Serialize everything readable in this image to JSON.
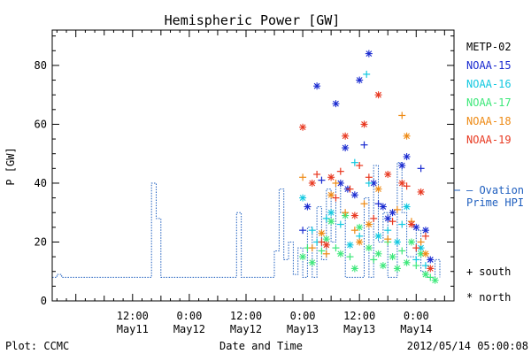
{
  "chart_data": {
    "type": "scatter",
    "title": "Hemispheric Power [GW]",
    "xlabel": "Date and Time",
    "ylabel": "P [GW]",
    "xlim": [
      "2012-05-10T19:00",
      "2012-05-14T08:00"
    ],
    "ylim": [
      0,
      92
    ],
    "yticks": [
      0,
      20,
      40,
      60,
      80
    ],
    "xticks": [
      {
        "t": "2012-05-11T12:00",
        "line1": "12:00",
        "line2": "May11"
      },
      {
        "t": "2012-05-12T00:00",
        "line1": "0:00",
        "line2": "May12"
      },
      {
        "t": "2012-05-12T12:00",
        "line1": "12:00",
        "line2": "May12"
      },
      {
        "t": "2012-05-13T00:00",
        "line1": "0:00",
        "line2": "May13"
      },
      {
        "t": "2012-05-13T12:00",
        "line1": "12:00",
        "line2": "May13"
      },
      {
        "t": "2012-05-14T00:00",
        "line1": "0:00",
        "line2": "May14"
      }
    ],
    "ovation": {
      "label_line1": "— Ovation",
      "label_line2": "Prime HPI",
      "color": "#1f5fbf",
      "points": [
        [
          "2012-05-10T19:00",
          8
        ],
        [
          "2012-05-10T20:00",
          8
        ],
        [
          "2012-05-10T20:00",
          9
        ],
        [
          "2012-05-10T21:00",
          9
        ],
        [
          "2012-05-10T21:00",
          8
        ],
        [
          "2012-05-11T16:00",
          8
        ],
        [
          "2012-05-11T16:00",
          40
        ],
        [
          "2012-05-11T17:00",
          40
        ],
        [
          "2012-05-11T17:00",
          28
        ],
        [
          "2012-05-11T18:00",
          28
        ],
        [
          "2012-05-11T18:00",
          8
        ],
        [
          "2012-05-12T10:00",
          8
        ],
        [
          "2012-05-12T10:00",
          30
        ],
        [
          "2012-05-12T11:00",
          30
        ],
        [
          "2012-05-12T11:00",
          8
        ],
        [
          "2012-05-12T18:00",
          8
        ],
        [
          "2012-05-12T18:00",
          17
        ],
        [
          "2012-05-12T19:00",
          17
        ],
        [
          "2012-05-12T19:00",
          38
        ],
        [
          "2012-05-12T20:00",
          38
        ],
        [
          "2012-05-12T20:00",
          14
        ],
        [
          "2012-05-12T21:00",
          14
        ],
        [
          "2012-05-12T21:00",
          20
        ],
        [
          "2012-05-12T22:00",
          20
        ],
        [
          "2012-05-12T22:00",
          9
        ],
        [
          "2012-05-12T23:00",
          9
        ],
        [
          "2012-05-12T23:00",
          18
        ],
        [
          "2012-05-13T00:00",
          18
        ],
        [
          "2012-05-13T00:00",
          8
        ],
        [
          "2012-05-13T01:00",
          8
        ],
        [
          "2012-05-13T01:00",
          25
        ],
        [
          "2012-05-13T02:00",
          25
        ],
        [
          "2012-05-13T02:00",
          8
        ],
        [
          "2012-05-13T03:00",
          8
        ],
        [
          "2012-05-13T03:00",
          32
        ],
        [
          "2012-05-13T04:00",
          32
        ],
        [
          "2012-05-13T04:00",
          14
        ],
        [
          "2012-05-13T05:00",
          14
        ],
        [
          "2012-05-13T05:00",
          38
        ],
        [
          "2012-05-13T06:00",
          38
        ],
        [
          "2012-05-13T06:00",
          20
        ],
        [
          "2012-05-13T07:00",
          20
        ],
        [
          "2012-05-13T07:00",
          40
        ],
        [
          "2012-05-13T08:00",
          40
        ],
        [
          "2012-05-13T08:00",
          30
        ],
        [
          "2012-05-13T09:00",
          30
        ],
        [
          "2012-05-13T09:00",
          8
        ],
        [
          "2012-05-13T13:00",
          8
        ],
        [
          "2012-05-13T13:00",
          35
        ],
        [
          "2012-05-13T14:00",
          35
        ],
        [
          "2012-05-13T14:00",
          8
        ],
        [
          "2012-05-13T15:00",
          8
        ],
        [
          "2012-05-13T15:00",
          46
        ],
        [
          "2012-05-13T16:00",
          46
        ],
        [
          "2012-05-13T16:00",
          20
        ],
        [
          "2012-05-13T17:00",
          20
        ],
        [
          "2012-05-13T17:00",
          30
        ],
        [
          "2012-05-13T18:00",
          30
        ],
        [
          "2012-05-13T18:00",
          8
        ],
        [
          "2012-05-13T20:00",
          8
        ],
        [
          "2012-05-13T20:00",
          47
        ],
        [
          "2012-05-13T21:00",
          47
        ],
        [
          "2012-05-13T21:00",
          30
        ],
        [
          "2012-05-13T22:00",
          30
        ],
        [
          "2012-05-13T22:00",
          15
        ],
        [
          "2012-05-14T00:00",
          15
        ],
        [
          "2012-05-14T00:00",
          24
        ],
        [
          "2012-05-14T01:00",
          24
        ],
        [
          "2012-05-14T01:00",
          10
        ],
        [
          "2012-05-14T02:00",
          10
        ],
        [
          "2012-05-14T02:00",
          8
        ],
        [
          "2012-05-14T04:00",
          8
        ],
        [
          "2012-05-14T04:00",
          14
        ],
        [
          "2012-05-14T05:00",
          14
        ],
        [
          "2012-05-14T05:00",
          8
        ]
      ]
    },
    "series": [
      {
        "name": "METP-02",
        "color": "#000000",
        "points": []
      },
      {
        "name": "NOAA-15",
        "color": "#1a2bd0",
        "points": [
          [
            "2012-05-13T00:00",
            24,
            "+"
          ],
          [
            "2012-05-13T01:00",
            32,
            "*"
          ],
          [
            "2012-05-13T03:00",
            73,
            "*"
          ],
          [
            "2012-05-13T04:00",
            41,
            "+"
          ],
          [
            "2012-05-13T07:00",
            67,
            "*"
          ],
          [
            "2012-05-13T08:00",
            40,
            "*"
          ],
          [
            "2012-05-13T09:00",
            52,
            "*"
          ],
          [
            "2012-05-13T09:30",
            38,
            "*"
          ],
          [
            "2012-05-13T11:00",
            36,
            "*"
          ],
          [
            "2012-05-13T12:00",
            75,
            "*"
          ],
          [
            "2012-05-13T13:00",
            53,
            "+"
          ],
          [
            "2012-05-13T14:00",
            84,
            "*"
          ],
          [
            "2012-05-13T15:00",
            40,
            "*"
          ],
          [
            "2012-05-13T16:00",
            33,
            "+"
          ],
          [
            "2012-05-13T17:00",
            32,
            "*"
          ],
          [
            "2012-05-13T18:00",
            28,
            "*"
          ],
          [
            "2012-05-13T19:00",
            30,
            "*"
          ],
          [
            "2012-05-13T21:00",
            46,
            "*"
          ],
          [
            "2012-05-13T22:00",
            49,
            "*"
          ],
          [
            "2012-05-14T00:00",
            25,
            "*"
          ],
          [
            "2012-05-14T01:00",
            45,
            "+"
          ],
          [
            "2012-05-14T02:00",
            24,
            "*"
          ],
          [
            "2012-05-14T03:00",
            14,
            "*"
          ]
        ]
      },
      {
        "name": "NOAA-16",
        "color": "#12c8e0",
        "points": [
          [
            "2012-05-13T00:00",
            35,
            "*"
          ],
          [
            "2012-05-13T02:00",
            24,
            "+"
          ],
          [
            "2012-05-13T03:00",
            20,
            "+"
          ],
          [
            "2012-05-13T05:00",
            28,
            "+"
          ],
          [
            "2012-05-13T06:00",
            30,
            "*"
          ],
          [
            "2012-05-13T08:00",
            26,
            "+"
          ],
          [
            "2012-05-13T10:00",
            19,
            "*"
          ],
          [
            "2012-05-13T11:00",
            47,
            "+"
          ],
          [
            "2012-05-13T12:00",
            22,
            "+"
          ],
          [
            "2012-05-13T13:30",
            77,
            "+"
          ],
          [
            "2012-05-13T14:00",
            40,
            "+"
          ],
          [
            "2012-05-13T16:00",
            22,
            "*"
          ],
          [
            "2012-05-13T18:00",
            24,
            "+"
          ],
          [
            "2012-05-13T20:00",
            20,
            "*"
          ],
          [
            "2012-05-13T21:00",
            26,
            "+"
          ],
          [
            "2012-05-13T22:00",
            32,
            "*"
          ],
          [
            "2012-05-14T00:00",
            14,
            "+"
          ],
          [
            "2012-05-14T01:00",
            18,
            "*"
          ],
          [
            "2012-05-14T02:00",
            12,
            "+"
          ]
        ]
      },
      {
        "name": "NOAA-17",
        "color": "#3de87a",
        "points": [
          [
            "2012-05-13T00:00",
            15,
            "*"
          ],
          [
            "2012-05-13T01:00",
            18,
            "+"
          ],
          [
            "2012-05-13T02:00",
            13,
            "*"
          ],
          [
            "2012-05-13T04:00",
            17,
            "+"
          ],
          [
            "2012-05-13T05:00",
            21,
            "*"
          ],
          [
            "2012-05-13T06:00",
            27,
            "*"
          ],
          [
            "2012-05-13T07:00",
            18,
            "+"
          ],
          [
            "2012-05-13T08:00",
            16,
            "*"
          ],
          [
            "2012-05-13T09:00",
            29,
            "*"
          ],
          [
            "2012-05-13T10:00",
            15,
            "+"
          ],
          [
            "2012-05-13T11:00",
            11,
            "*"
          ],
          [
            "2012-05-13T12:00",
            25,
            "*"
          ],
          [
            "2012-05-13T14:00",
            18,
            "*"
          ],
          [
            "2012-05-13T15:00",
            14,
            "+"
          ],
          [
            "2012-05-13T16:00",
            16,
            "*"
          ],
          [
            "2012-05-13T17:00",
            12,
            "*"
          ],
          [
            "2012-05-13T18:00",
            20,
            "+"
          ],
          [
            "2012-05-13T19:00",
            15,
            "*"
          ],
          [
            "2012-05-13T20:00",
            11,
            "*"
          ],
          [
            "2012-05-13T21:00",
            17,
            "+"
          ],
          [
            "2012-05-13T22:00",
            13,
            "*"
          ],
          [
            "2012-05-13T23:00",
            20,
            "*"
          ],
          [
            "2012-05-14T00:00",
            12,
            "+"
          ],
          [
            "2012-05-14T01:00",
            16,
            "*"
          ],
          [
            "2012-05-14T02:00",
            9,
            "*"
          ],
          [
            "2012-05-14T03:00",
            8,
            "+"
          ],
          [
            "2012-05-14T04:00",
            7,
            "*"
          ]
        ]
      },
      {
        "name": "NOAA-18",
        "color": "#ee8a14",
        "points": [
          [
            "2012-05-13T00:00",
            42,
            "+"
          ],
          [
            "2012-05-13T02:00",
            18,
            "+"
          ],
          [
            "2012-05-13T04:00",
            23,
            "*"
          ],
          [
            "2012-05-13T05:00",
            16,
            "+"
          ],
          [
            "2012-05-13T06:00",
            36,
            "*"
          ],
          [
            "2012-05-13T07:00",
            40,
            "+"
          ],
          [
            "2012-05-13T09:00",
            30,
            "+"
          ],
          [
            "2012-05-13T11:00",
            24,
            "+"
          ],
          [
            "2012-05-13T12:00",
            20,
            "*"
          ],
          [
            "2012-05-13T13:00",
            33,
            "+"
          ],
          [
            "2012-05-13T14:00",
            26,
            "*"
          ],
          [
            "2012-05-13T16:00",
            38,
            "*"
          ],
          [
            "2012-05-13T18:00",
            21,
            "+"
          ],
          [
            "2012-05-13T20:00",
            31,
            "+"
          ],
          [
            "2012-05-13T21:00",
            63,
            "+"
          ],
          [
            "2012-05-13T22:00",
            56,
            "*"
          ],
          [
            "2012-05-13T23:00",
            27,
            "+"
          ],
          [
            "2012-05-14T01:00",
            20,
            "+"
          ],
          [
            "2012-05-14T02:00",
            16,
            "*"
          ]
        ]
      },
      {
        "name": "NOAA-19",
        "color": "#e83820",
        "points": [
          [
            "2012-05-13T00:00",
            59,
            "*"
          ],
          [
            "2012-05-13T02:00",
            40,
            "*"
          ],
          [
            "2012-05-13T03:00",
            43,
            "+"
          ],
          [
            "2012-05-13T04:00",
            20,
            "+"
          ],
          [
            "2012-05-13T05:00",
            19,
            "*"
          ],
          [
            "2012-05-13T06:00",
            42,
            "*"
          ],
          [
            "2012-05-13T07:00",
            35,
            "+"
          ],
          [
            "2012-05-13T08:00",
            44,
            "+"
          ],
          [
            "2012-05-13T09:00",
            56,
            "*"
          ],
          [
            "2012-05-13T10:00",
            38,
            "+"
          ],
          [
            "2012-05-13T11:00",
            29,
            "*"
          ],
          [
            "2012-05-13T12:00",
            46,
            "+"
          ],
          [
            "2012-05-13T13:00",
            60,
            "*"
          ],
          [
            "2012-05-13T14:00",
            42,
            "+"
          ],
          [
            "2012-05-13T15:00",
            28,
            "+"
          ],
          [
            "2012-05-13T16:00",
            70,
            "*"
          ],
          [
            "2012-05-13T18:00",
            43,
            "*"
          ],
          [
            "2012-05-13T19:00",
            27,
            "+"
          ],
          [
            "2012-05-13T21:00",
            40,
            "*"
          ],
          [
            "2012-05-13T22:00",
            39,
            "+"
          ],
          [
            "2012-05-13T23:00",
            26,
            "*"
          ],
          [
            "2012-05-14T00:00",
            18,
            "+"
          ],
          [
            "2012-05-14T01:00",
            37,
            "*"
          ],
          [
            "2012-05-14T02:00",
            22,
            "+"
          ],
          [
            "2012-05-14T03:00",
            11,
            "*"
          ]
        ]
      }
    ],
    "marker_legend": [
      {
        "symbol": "+",
        "label": "south"
      },
      {
        "symbol": "*",
        "label": "north"
      }
    ]
  },
  "footer": {
    "left": "Plot: CCMC",
    "center": "Date and Time",
    "right": "2012/05/14 05:00:08"
  }
}
